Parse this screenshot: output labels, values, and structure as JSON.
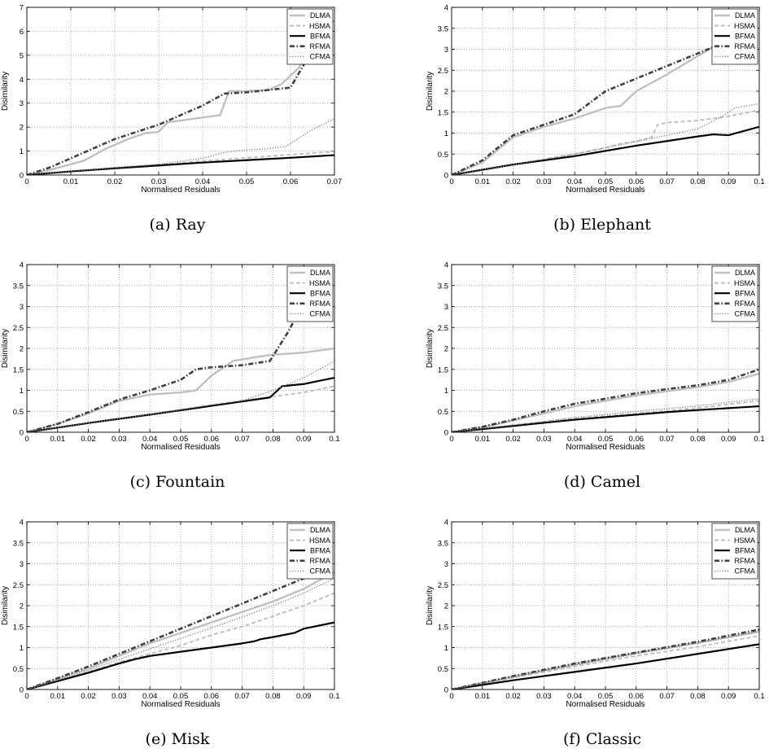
{
  "chart_data": [
    {
      "type": "line",
      "caption": "(a) Ray",
      "xlabel": "Normalised Residuals",
      "ylabel": "Disimilarity",
      "xlim": [
        0,
        0.07
      ],
      "ylim": [
        0,
        7
      ],
      "xticks": [
        "0",
        "0.01",
        "0.02",
        "0.03",
        "0.04",
        "0.05",
        "0.06",
        "0.07"
      ],
      "yticks": [
        "0",
        "1",
        "2",
        "3",
        "4",
        "5",
        "6",
        "7"
      ],
      "grid": true,
      "legend_position": "top-right",
      "series": [
        {
          "name": "DLMA",
          "x": [
            0,
            0.005,
            0.013,
            0.018,
            0.023,
            0.027,
            0.03,
            0.032,
            0.036,
            0.04,
            0.044,
            0.046,
            0.049,
            0.055,
            0.058,
            0.062,
            0.064,
            0.066
          ],
          "y": [
            0,
            0.2,
            0.6,
            1.1,
            1.5,
            1.75,
            1.8,
            2.2,
            2.3,
            2.4,
            2.5,
            3.5,
            3.5,
            3.55,
            3.8,
            4.5,
            5.5,
            6.2
          ]
        },
        {
          "name": "HSMA",
          "x": [
            0,
            0.01,
            0.02,
            0.03,
            0.04,
            0.05,
            0.06,
            0.07
          ],
          "y": [
            0,
            0.16,
            0.3,
            0.43,
            0.58,
            0.72,
            0.85,
            0.98
          ]
        },
        {
          "name": "BFMA",
          "x": [
            0,
            0.01,
            0.02,
            0.03,
            0.04,
            0.05,
            0.06,
            0.07
          ],
          "y": [
            0,
            0.15,
            0.28,
            0.4,
            0.52,
            0.62,
            0.72,
            0.83
          ]
        },
        {
          "name": "RFMA",
          "x": [
            0,
            0.005,
            0.01,
            0.015,
            0.02,
            0.025,
            0.03,
            0.035,
            0.04,
            0.045,
            0.05,
            0.055,
            0.06,
            0.063,
            0.066,
            0.07
          ],
          "y": [
            0,
            0.3,
            0.7,
            1.1,
            1.5,
            1.8,
            2.1,
            2.5,
            2.9,
            3.4,
            3.45,
            3.55,
            3.65,
            4.6,
            5.8,
            6.5
          ]
        },
        {
          "name": "CFMA",
          "x": [
            0,
            0.01,
            0.02,
            0.03,
            0.04,
            0.045,
            0.05,
            0.055,
            0.059,
            0.062,
            0.065,
            0.07
          ],
          "y": [
            0,
            0.16,
            0.3,
            0.45,
            0.7,
            0.95,
            1.05,
            1.1,
            1.2,
            1.55,
            1.9,
            2.35
          ]
        }
      ]
    },
    {
      "type": "line",
      "caption": "(b) Elephant",
      "xlabel": "Normalised Residuals",
      "ylabel": "Disimilarity",
      "xlim": [
        0,
        0.1
      ],
      "ylim": [
        0,
        4
      ],
      "xticks": [
        "0",
        "0.01",
        "0.02",
        "0.03",
        "0.04",
        "0.05",
        "0.06",
        "0.07",
        "0.08",
        "0.09",
        "0.1"
      ],
      "yticks": [
        "0",
        "0.5",
        "1",
        "1.5",
        "2",
        "2.5",
        "3",
        "3.5",
        "4"
      ],
      "grid": true,
      "legend_position": "top-right",
      "series": [
        {
          "name": "DLMA",
          "x": [
            0,
            0.01,
            0.02,
            0.03,
            0.04,
            0.05,
            0.055,
            0.06,
            0.07,
            0.078,
            0.085
          ],
          "y": [
            0,
            0.3,
            0.9,
            1.15,
            1.35,
            1.6,
            1.65,
            2.0,
            2.4,
            2.75,
            3.05
          ]
        },
        {
          "name": "HSMA",
          "x": [
            0,
            0.02,
            0.04,
            0.05,
            0.055,
            0.06,
            0.065,
            0.067,
            0.07,
            0.08,
            0.09,
            0.1
          ],
          "y": [
            0,
            0.25,
            0.5,
            0.65,
            0.75,
            0.8,
            0.9,
            1.2,
            1.25,
            1.3,
            1.4,
            1.55
          ]
        },
        {
          "name": "BFMA",
          "x": [
            0,
            0.02,
            0.04,
            0.06,
            0.08,
            0.085,
            0.09,
            0.1
          ],
          "y": [
            0,
            0.25,
            0.45,
            0.7,
            0.92,
            0.97,
            0.95,
            1.15
          ]
        },
        {
          "name": "RFMA",
          "x": [
            0,
            0.01,
            0.02,
            0.03,
            0.04,
            0.05,
            0.06,
            0.07,
            0.08,
            0.085
          ],
          "y": [
            0,
            0.35,
            0.95,
            1.2,
            1.45,
            2.0,
            2.3,
            2.6,
            2.9,
            3.05
          ]
        },
        {
          "name": "CFMA",
          "x": [
            0,
            0.02,
            0.04,
            0.06,
            0.08,
            0.088,
            0.092,
            0.1
          ],
          "y": [
            0,
            0.25,
            0.5,
            0.8,
            1.1,
            1.4,
            1.6,
            1.7
          ]
        }
      ]
    },
    {
      "type": "line",
      "caption": "(c) Fountain",
      "xlabel": "Normalised Residuals",
      "ylabel": "Disimilarity",
      "xlim": [
        0,
        0.1
      ],
      "ylim": [
        0,
        4
      ],
      "xticks": [
        "0",
        "0.01",
        "0.02",
        "0.03",
        "0.04",
        "0.05",
        "0.06",
        "0.07",
        "0.08",
        "0.09",
        "0.1"
      ],
      "yticks": [
        "0",
        "0.5",
        "1",
        "1.5",
        "2",
        "2.5",
        "3",
        "3.5",
        "4"
      ],
      "grid": true,
      "legend_position": "top-right",
      "series": [
        {
          "name": "DLMA",
          "x": [
            0,
            0.01,
            0.02,
            0.03,
            0.04,
            0.05,
            0.055,
            0.06,
            0.067,
            0.075,
            0.08,
            0.09,
            0.1
          ],
          "y": [
            0,
            0.2,
            0.45,
            0.75,
            0.9,
            0.95,
            1.0,
            1.35,
            1.7,
            1.8,
            1.85,
            1.9,
            2.0
          ]
        },
        {
          "name": "HSMA",
          "x": [
            0,
            0.02,
            0.04,
            0.06,
            0.08,
            0.09,
            0.1
          ],
          "y": [
            0,
            0.22,
            0.42,
            0.65,
            0.85,
            0.95,
            1.1
          ]
        },
        {
          "name": "BFMA",
          "x": [
            0,
            0.02,
            0.04,
            0.06,
            0.079,
            0.083,
            0.09,
            0.1
          ],
          "y": [
            0,
            0.22,
            0.42,
            0.63,
            0.83,
            1.1,
            1.15,
            1.3
          ]
        },
        {
          "name": "RFMA",
          "x": [
            0,
            0.01,
            0.02,
            0.03,
            0.04,
            0.05,
            0.055,
            0.06,
            0.07,
            0.079,
            0.085,
            0.09
          ],
          "y": [
            0,
            0.2,
            0.48,
            0.78,
            1.0,
            1.25,
            1.5,
            1.55,
            1.6,
            1.7,
            2.4,
            3.1
          ]
        },
        {
          "name": "CFMA",
          "x": [
            0,
            0.02,
            0.04,
            0.06,
            0.07,
            0.08,
            0.09,
            0.1
          ],
          "y": [
            0,
            0.22,
            0.42,
            0.65,
            0.75,
            1.0,
            1.3,
            1.7
          ]
        }
      ]
    },
    {
      "type": "line",
      "caption": "(d) Camel",
      "xlabel": "Normalised Residuals",
      "ylabel": "Disimilarity",
      "xlim": [
        0,
        0.1
      ],
      "ylim": [
        0,
        4
      ],
      "xticks": [
        "0",
        "0.01",
        "0.02",
        "0.03",
        "0.04",
        "0.05",
        "0.06",
        "0.07",
        "0.08",
        "0.09",
        "0.1"
      ],
      "yticks": [
        "0",
        "0.5",
        "1",
        "1.5",
        "2",
        "2.5",
        "3",
        "3.5",
        "4"
      ],
      "grid": true,
      "legend_position": "top-right",
      "series": [
        {
          "name": "DLMA",
          "x": [
            0,
            0.01,
            0.02,
            0.03,
            0.04,
            0.05,
            0.06,
            0.07,
            0.08,
            0.09,
            0.1
          ],
          "y": [
            0,
            0.12,
            0.28,
            0.45,
            0.62,
            0.75,
            0.88,
            0.98,
            1.08,
            1.2,
            1.4
          ]
        },
        {
          "name": "HSMA",
          "x": [
            0,
            0.02,
            0.04,
            0.06,
            0.08,
            0.1
          ],
          "y": [
            0,
            0.17,
            0.33,
            0.45,
            0.58,
            0.75
          ]
        },
        {
          "name": "BFMA",
          "x": [
            0,
            0.02,
            0.04,
            0.06,
            0.07,
            0.08,
            0.1
          ],
          "y": [
            0,
            0.15,
            0.3,
            0.42,
            0.48,
            0.53,
            0.62
          ]
        },
        {
          "name": "RFMA",
          "x": [
            0,
            0.01,
            0.02,
            0.03,
            0.04,
            0.05,
            0.06,
            0.07,
            0.08,
            0.09,
            0.1
          ],
          "y": [
            0,
            0.13,
            0.3,
            0.5,
            0.68,
            0.8,
            0.93,
            1.03,
            1.12,
            1.25,
            1.5
          ]
        },
        {
          "name": "CFMA",
          "x": [
            0,
            0.02,
            0.04,
            0.06,
            0.08,
            0.1
          ],
          "y": [
            0,
            0.17,
            0.35,
            0.5,
            0.63,
            0.8
          ]
        }
      ]
    },
    {
      "type": "line",
      "caption": "(e) Misk",
      "xlabel": "Normalised Residuals",
      "ylabel": "Disimilarity",
      "xlim": [
        0,
        0.1
      ],
      "ylim": [
        0,
        4
      ],
      "xticks": [
        "0",
        "0.01",
        "0.02",
        "0.03",
        "0.04",
        "0.05",
        "0.06",
        "0.07",
        "0.08",
        "0.09",
        "0.1"
      ],
      "yticks": [
        "0",
        "0.5",
        "1",
        "1.5",
        "2",
        "2.5",
        "3",
        "3.5",
        "4"
      ],
      "grid": true,
      "legend_position": "top-right",
      "series": [
        {
          "name": "DLMA",
          "x": [
            0,
            0.01,
            0.02,
            0.03,
            0.04,
            0.05,
            0.06,
            0.07,
            0.08,
            0.09,
            0.1
          ],
          "y": [
            0,
            0.25,
            0.5,
            0.8,
            1.1,
            1.35,
            1.6,
            1.85,
            2.1,
            2.4,
            2.8
          ]
        },
        {
          "name": "HSMA",
          "x": [
            0,
            0.01,
            0.02,
            0.03,
            0.04,
            0.05,
            0.06,
            0.07,
            0.08,
            0.09,
            0.1
          ],
          "y": [
            0,
            0.2,
            0.42,
            0.65,
            0.85,
            1.05,
            1.3,
            1.5,
            1.75,
            2.0,
            2.3
          ]
        },
        {
          "name": "BFMA",
          "x": [
            0,
            0.01,
            0.02,
            0.03,
            0.035,
            0.04,
            0.05,
            0.06,
            0.07,
            0.074,
            0.076,
            0.08,
            0.087,
            0.09,
            0.1
          ],
          "y": [
            0,
            0.2,
            0.4,
            0.62,
            0.72,
            0.8,
            0.9,
            1.0,
            1.1,
            1.15,
            1.2,
            1.25,
            1.35,
            1.45,
            1.6
          ]
        },
        {
          "name": "RFMA",
          "x": [
            0,
            0.01,
            0.02,
            0.03,
            0.04,
            0.05,
            0.06,
            0.07,
            0.08,
            0.09,
            0.1
          ],
          "y": [
            0,
            0.27,
            0.55,
            0.85,
            1.15,
            1.45,
            1.75,
            2.05,
            2.35,
            2.65,
            3.0
          ]
        },
        {
          "name": "CFMA",
          "x": [
            0,
            0.01,
            0.02,
            0.03,
            0.04,
            0.05,
            0.06,
            0.07,
            0.08,
            0.09,
            0.1
          ],
          "y": [
            0,
            0.22,
            0.46,
            0.72,
            0.97,
            1.22,
            1.47,
            1.73,
            2.0,
            2.3,
            2.65
          ]
        }
      ]
    },
    {
      "type": "line",
      "caption": "(f) Classic",
      "xlabel": "Normalised Residuals",
      "ylabel": "Disimilarity",
      "xlim": [
        0,
        0.1
      ],
      "ylim": [
        0,
        4
      ],
      "xticks": [
        "0",
        "0.01",
        "0.02",
        "0.03",
        "0.04",
        "0.05",
        "0.06",
        "0.07",
        "0.08",
        "0.09",
        "0.1"
      ],
      "yticks": [
        "0",
        "0.5",
        "1",
        "1.5",
        "2",
        "2.5",
        "3",
        "3.5",
        "4"
      ],
      "grid": true,
      "legend_position": "top-right",
      "series": [
        {
          "name": "DLMA",
          "x": [
            0,
            0.02,
            0.04,
            0.06,
            0.08,
            0.1
          ],
          "y": [
            0,
            0.3,
            0.6,
            0.87,
            1.12,
            1.38
          ]
        },
        {
          "name": "HSMA",
          "x": [
            0,
            0.02,
            0.04,
            0.06,
            0.08,
            0.1
          ],
          "y": [
            0,
            0.28,
            0.55,
            0.8,
            1.02,
            1.28
          ]
        },
        {
          "name": "BFMA",
          "x": [
            0,
            0.02,
            0.04,
            0.06,
            0.08,
            0.1
          ],
          "y": [
            0,
            0.22,
            0.42,
            0.62,
            0.85,
            1.08
          ]
        },
        {
          "name": "RFMA",
          "x": [
            0,
            0.02,
            0.04,
            0.06,
            0.08,
            0.1
          ],
          "y": [
            0,
            0.32,
            0.62,
            0.88,
            1.14,
            1.43
          ]
        },
        {
          "name": "CFMA",
          "x": [
            0,
            0.02,
            0.04,
            0.06,
            0.08,
            0.1
          ],
          "y": [
            0,
            0.3,
            0.58,
            0.85,
            1.1,
            1.38
          ]
        }
      ]
    }
  ],
  "series_styles": {
    "DLMA": {
      "color": "#c0c0c0",
      "dash": "solid"
    },
    "HSMA": {
      "color": "#c0c0c0",
      "dash": "dashed"
    },
    "BFMA": {
      "color": "#000000",
      "dash": "solid"
    },
    "RFMA": {
      "color": "#404040",
      "dash": "dash-dot"
    },
    "CFMA": {
      "color": "#808080",
      "dash": "dotted"
    }
  }
}
